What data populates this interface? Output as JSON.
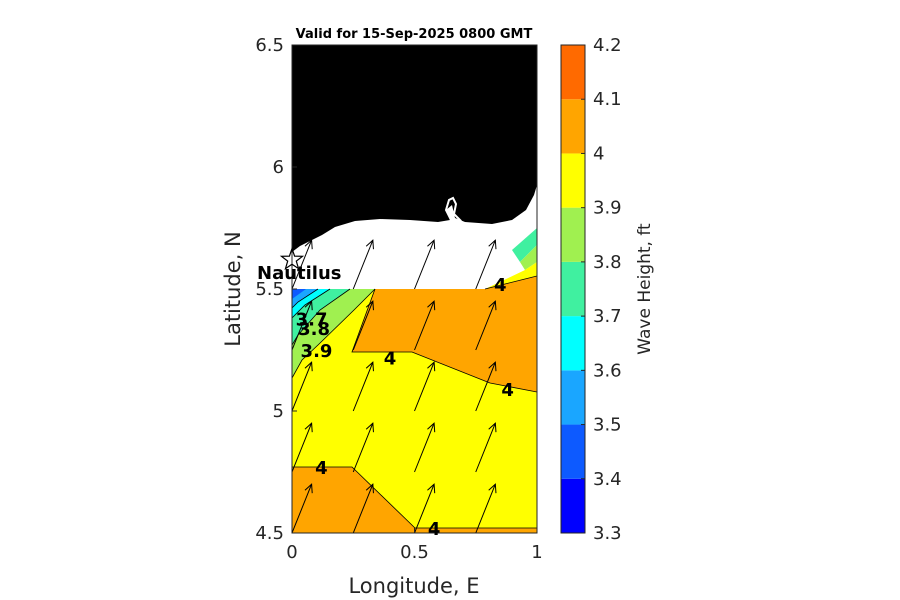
{
  "chart_data": {
    "type": "contour-map",
    "title": "Valid for 15-Sep-2025 0800 GMT",
    "xlabel": "Longitude, E",
    "ylabel": "Latitude, N",
    "xlim": [
      0,
      1
    ],
    "ylim": [
      4.5,
      6.5
    ],
    "xticks": [
      "0",
      "0.5",
      "1"
    ],
    "xtick_values": [
      0,
      0.5,
      1
    ],
    "yticks": [
      "4.5",
      "5",
      "5.5",
      "6",
      "6.5"
    ],
    "ytick_values": [
      4.5,
      5,
      5.5,
      6,
      6.5
    ],
    "colorbar": {
      "label": "Wave Height, ft",
      "ticks": [
        "3.3",
        "3.4",
        "3.5",
        "3.6",
        "3.7",
        "3.8",
        "3.9",
        "4",
        "4.1",
        "4.2"
      ],
      "levels": [
        3.3,
        3.4,
        3.5,
        3.6,
        3.7,
        3.8,
        3.9,
        4.0,
        4.1,
        4.2
      ],
      "colors": [
        "#0000ff",
        "#0d5aff",
        "#1aa6ff",
        "#00ffff",
        "#40f0a0",
        "#a0f050",
        "#ffff00",
        "#ffa500",
        "#ff6a00"
      ]
    },
    "contour_labels": [
      {
        "text": "4",
        "lon": 0.85,
        "lat": 5.52
      },
      {
        "text": "3.7",
        "lon": 0.08,
        "lat": 5.38
      },
      {
        "text": "3.8",
        "lon": 0.09,
        "lat": 5.34
      },
      {
        "text": "3.9",
        "lon": 0.1,
        "lat": 5.25
      },
      {
        "text": "4",
        "lon": 0.4,
        "lat": 5.22
      },
      {
        "text": "4",
        "lon": 0.88,
        "lat": 5.09
      },
      {
        "text": "4",
        "lon": 0.12,
        "lat": 4.77
      },
      {
        "text": "4",
        "lon": 0.58,
        "lat": 4.52
      }
    ],
    "station": {
      "name": "Nautilus",
      "lon": 0.0,
      "lat": 5.62
    },
    "wind_vectors": {
      "lons": [
        0.0,
        0.25,
        0.5,
        0.75
      ],
      "lats": [
        4.5,
        4.75,
        5.0,
        5.25,
        5.5
      ],
      "dx": 0.08,
      "dy": 0.2
    },
    "land_color": "#000000"
  }
}
